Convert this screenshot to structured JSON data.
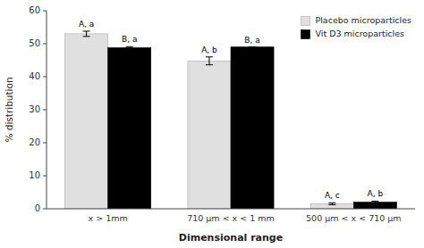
{
  "chart_data": {
    "type": "bar",
    "xlabel": "Dimensional range",
    "ylabel": "% distribution",
    "categories": [
      "x > 1mm",
      "710 μm < x < 1 mm",
      "500 μm < x < 710 μm"
    ],
    "series": [
      {
        "name": "Placebo microparticles",
        "color": "#e0e0e0",
        "values": [
          53.0,
          44.8,
          1.5
        ],
        "errors": [
          0.8,
          1.2,
          0.3
        ],
        "annotations": [
          "A, a",
          "A, b",
          "A, c"
        ]
      },
      {
        "name": "Vit D3 microparticles",
        "color": "#000000",
        "values": [
          48.8,
          49.0,
          2.0
        ],
        "errors": [
          0.3,
          0.0,
          0.3
        ],
        "annotations": [
          "B, a",
          "B, a",
          "A, b"
        ]
      }
    ],
    "ylim": [
      0,
      60
    ],
    "yticks": [
      0,
      10,
      20,
      30,
      40,
      50,
      60
    ],
    "legend": "upper right"
  }
}
